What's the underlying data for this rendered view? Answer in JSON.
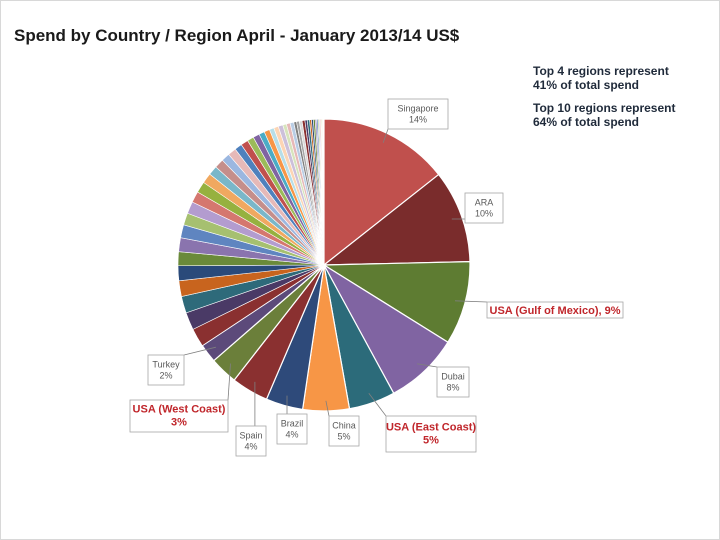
{
  "title": "Spend by Country / Region April - January 2013/14 US$",
  "notes": [
    {
      "line1": "Top 4 regions represent",
      "line2": "41% of total spend"
    },
    {
      "line1": "Top 10 regions represent",
      "line2": "64% of total spend"
    }
  ],
  "chart_data": {
    "type": "pie",
    "title": "Spend by Country / Region April - January 2013/14 US$",
    "unit": "% of total spend",
    "slices": [
      {
        "label": "Singapore",
        "value": 14,
        "display": "14%",
        "color": "#c0504d",
        "highlight": false
      },
      {
        "label": "ARA",
        "value": 10,
        "display": "10%",
        "color": "#7a2c2c",
        "highlight": false
      },
      {
        "label": "USA (Gulf of Mexico)",
        "value": 9,
        "display": "9%",
        "color": "#5e7c32",
        "highlight": true
      },
      {
        "label": "Dubai",
        "value": 8,
        "display": "8%",
        "color": "#8064a2",
        "highlight": false
      },
      {
        "label": "USA (East Coast)",
        "value": 5,
        "display": "5%",
        "color": "#2c6b7a",
        "highlight": true
      },
      {
        "label": "China",
        "value": 5,
        "display": "5%",
        "color": "#f79646",
        "highlight": false
      },
      {
        "label": "Brazil",
        "value": 4,
        "display": "4%",
        "color": "#2e4a7a",
        "highlight": false
      },
      {
        "label": "Spain",
        "value": 4,
        "display": "4%",
        "color": "#8a3030",
        "highlight": false
      },
      {
        "label": "USA (West Coast)",
        "value": 3,
        "display": "3%",
        "color": "#6b7f3a",
        "highlight": true
      },
      {
        "label": "Turkey",
        "value": 2,
        "display": "2%",
        "color": "#5c4a7a",
        "highlight": false
      }
    ],
    "other_slices": [
      2.0,
      1.9,
      1.8,
      1.7,
      1.6,
      1.5,
      1.5,
      1.4,
      1.3,
      1.3,
      1.2,
      1.2,
      1.1,
      1.0,
      1.0,
      0.9,
      0.9,
      0.8,
      0.8,
      0.7,
      0.7,
      0.6,
      0.6,
      0.5,
      0.5,
      0.5,
      0.4,
      0.4,
      0.4,
      0.3,
      0.3,
      0.3,
      0.3,
      0.25,
      0.25,
      0.2,
      0.2,
      0.2,
      0.15,
      0.15,
      0.12,
      0.1,
      0.1,
      0.08,
      0.08,
      0.06,
      0.05,
      0.05
    ],
    "palette": [
      "#8a3030",
      "#4a3a66",
      "#2e6a7a",
      "#c8641e",
      "#2a4a7a",
      "#6a8a3a",
      "#8a74ae",
      "#5f85c0",
      "#a6c070",
      "#b39ccf",
      "#d5776f",
      "#96b13f",
      "#f0a860",
      "#7ab7c9",
      "#c58e8b",
      "#9bb7e0",
      "#e6b9b8",
      "#4f81bd",
      "#c0504d",
      "#9bbb59",
      "#8064a2",
      "#4bacc6",
      "#f79646",
      "#b7dee8",
      "#fcd5b4",
      "#ccc0da",
      "#d7e4bc",
      "#e6b9b8",
      "#b9cde5",
      "#7f7f7f",
      "#a5a5a5",
      "#d9d9d9"
    ],
    "rotation": "clockwise from 12 o'clock, starting with Singapore",
    "legend": "none (callout labels)"
  }
}
